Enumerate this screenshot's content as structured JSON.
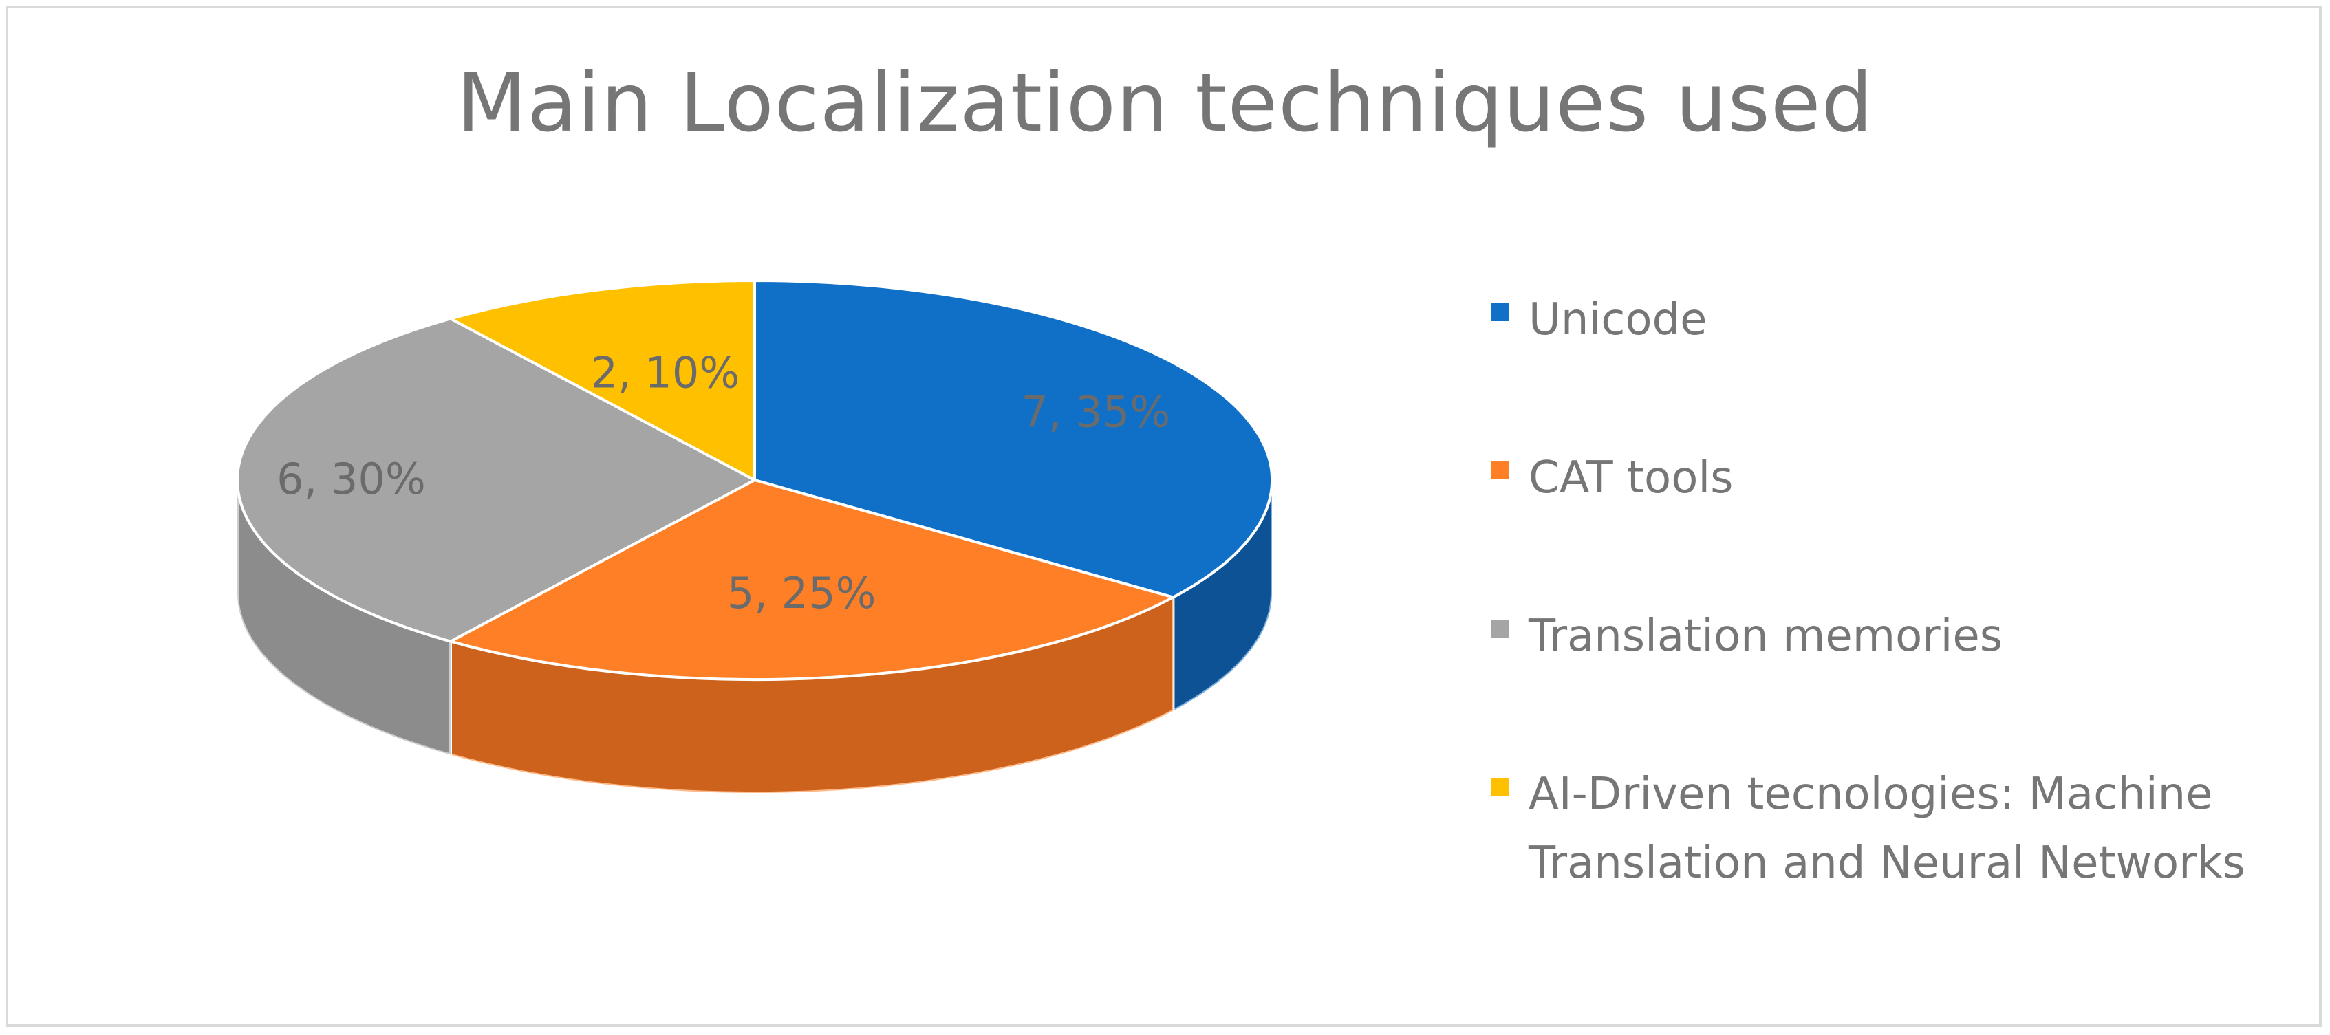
{
  "chart_data": {
    "type": "pie",
    "title": "Main Localization techniques used",
    "three_d": true,
    "legend_position": "right",
    "slices": [
      {
        "label": "Unicode",
        "value": 7,
        "percent": 35,
        "data_label": "7, 35%",
        "color": "#1070C8",
        "side_color": "#0A2F57"
      },
      {
        "label": "CAT tools",
        "value": 5,
        "percent": 25,
        "data_label": "5, 25%",
        "color": "#FF7F27",
        "side_color": "#8E3F0E"
      },
      {
        "label": "Translation memories",
        "value": 6,
        "percent": 30,
        "data_label": "6, 30%",
        "color": "#A5A5A5",
        "side_color": "#6E6E6E"
      },
      {
        "label": "AI-Driven tecnologies: Machine Translation and Neural Networks",
        "value": 2,
        "percent": 10,
        "data_label": "2, 10%",
        "color": "#FFC000",
        "side_color": "#9A7400"
      }
    ]
  }
}
